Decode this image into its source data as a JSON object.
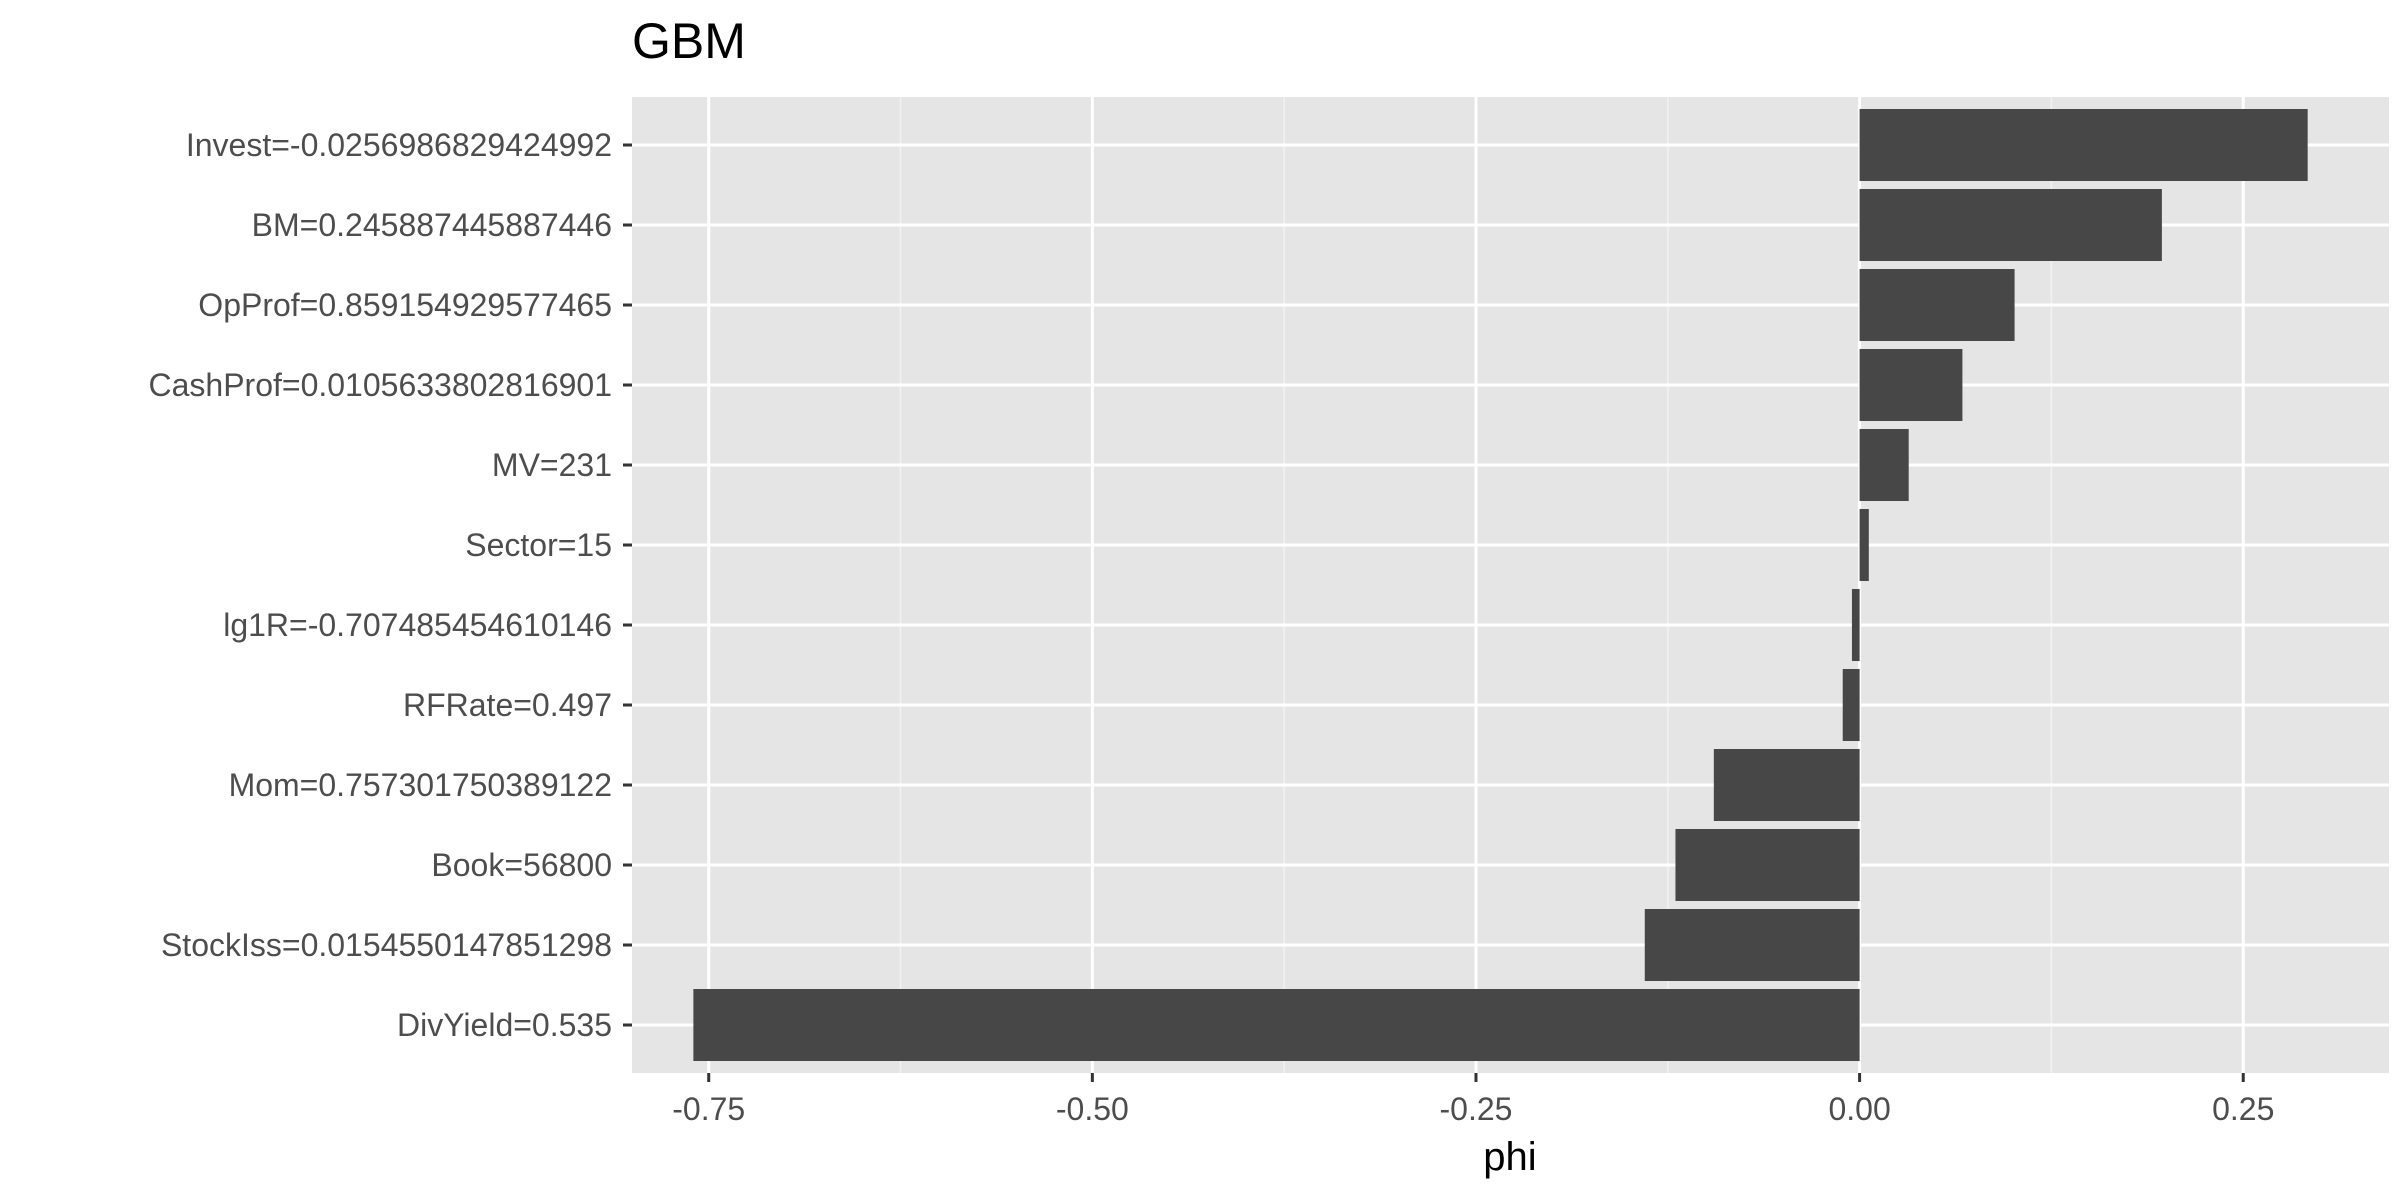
{
  "colors": {
    "panel_background": "#e5e5e5",
    "grid_major": "#ffffff",
    "grid_minor": "#f2f2f2",
    "bar_fill": "#474747",
    "tick_text": "#4d4d4d",
    "tick_mark": "#333333"
  },
  "chart_data": {
    "type": "bar",
    "orientation": "horizontal",
    "title": "GBM",
    "xlabel": "phi",
    "ylabel": "",
    "grid": true,
    "xlim": [
      -0.8,
      0.345
    ],
    "xticks": [
      -0.75,
      -0.5,
      -0.25,
      0.0,
      0.25
    ],
    "xtick_labels": [
      "-0.75",
      "-0.50",
      "-0.25",
      "0.00",
      "0.25"
    ],
    "categories": [
      "Invest=-0.0256986829424992",
      "BM=0.245887445887446",
      "OpProf=0.859154929577465",
      "CashProf=0.0105633802816901",
      "MV=231",
      "Sector=15",
      "lg1R=-0.707485454610146",
      "RFRate=0.497",
      "Mom=0.757301750389122",
      "Book=56800",
      "StockIss=0.0154550147851298",
      "DivYield=0.535"
    ],
    "values": [
      0.292,
      0.197,
      0.101,
      0.067,
      0.032,
      0.006,
      -0.005,
      -0.011,
      -0.095,
      -0.12,
      -0.14,
      -0.76
    ]
  }
}
